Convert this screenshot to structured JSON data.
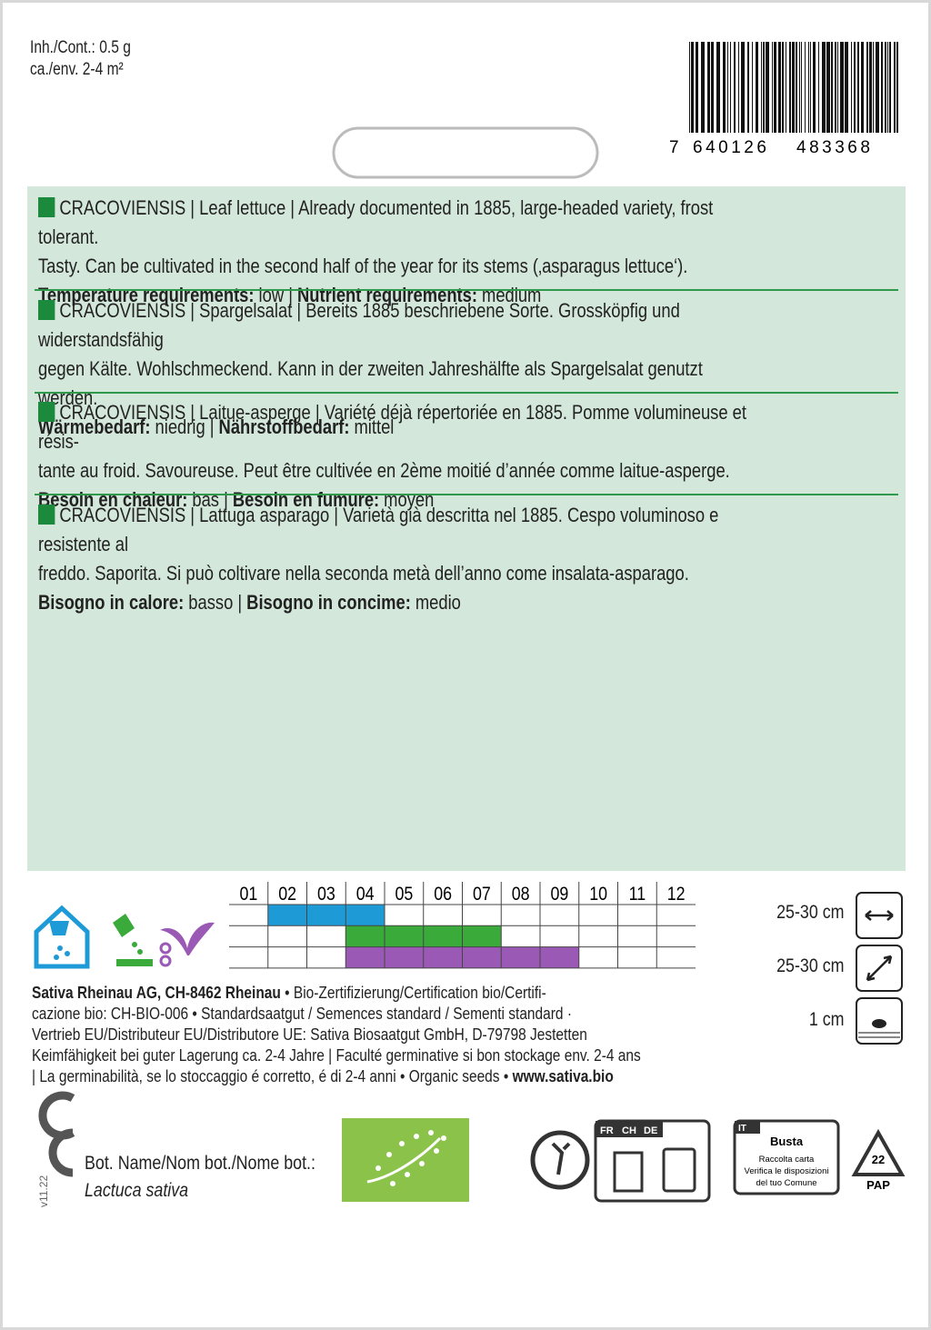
{
  "header": {
    "content": "Inh./Cont.: 0.5 g",
    "area": "ca./env. 2-4 m²",
    "barcode_prefix": "7",
    "barcode_left": "640126",
    "barcode_right": "483368"
  },
  "descriptions": [
    {
      "lines": [
        "CRACOVIENSIS | Leaf lettuce | Already documented in 1885, large-headed variety, frost tolerant.",
        "Tasty. Can be cultivated in the second half of the year for its stems (‚asparagus lettuce‘)."
      ],
      "heat_label": "Temperature requirements:",
      "heat_value": "low |",
      "nutrient_label": "Nutrient requirements:",
      "nutrient_value": "medium"
    },
    {
      "lines": [
        "CRACOVIENSIS | Spargelsalat | Bereits 1885 beschriebene Sorte. Grossköpfig und widerstandsfähig",
        "gegen Kälte. Wohlschmeckend. Kann in der zweiten Jahreshälfte als Spargelsalat genutzt werden."
      ],
      "heat_label": "Wärmebedarf:",
      "heat_value": "niedrig |",
      "nutrient_label": "Nährstoffbedarf:",
      "nutrient_value": "mittel"
    },
    {
      "lines": [
        "CRACOVIENSIS | Laitue-asperge | Variété déjà répertoriée en 1885. Pomme volumineuse et rési­s-",
        "tante au froid. Savoureuse. Peut être cultivée en 2ème moitié d’année comme laitue-asperge."
      ],
      "heat_label": "Besoin en chaleur:",
      "heat_value": "bas |",
      "nutrient_label": "Besoin en fumure:",
      "nutrient_value": "moyen"
    },
    {
      "lines": [
        "CRACOVIENSIS | Lattuga asparago | Varietà già descritta nel 1885. Cespo voluminoso e resistente al",
        "freddo. Saporita. Si può coltivare nella seconda metà dell’anno come insalata-asparago."
      ],
      "heat_label": "Bisogno in calore:",
      "heat_value": "basso |",
      "nutrient_label": "Bisogno in concime:",
      "nutrient_value": "medio"
    }
  ],
  "calendar": {
    "months": [
      "01",
      "02",
      "03",
      "04",
      "05",
      "06",
      "07",
      "08",
      "09",
      "10",
      "11",
      "12"
    ],
    "rows": [
      {
        "name": "sowing",
        "start": 2,
        "end": 4,
        "color": "#1e9bd7"
      },
      {
        "name": "planting",
        "start": 4,
        "end": 7,
        "color": "#3aab3a"
      },
      {
        "name": "harvest",
        "start": 4,
        "end": 9,
        "color": "#9b59b6"
      }
    ]
  },
  "spacing": [
    "25-30 cm",
    "25-30 cm",
    "1 cm"
  ],
  "footer": {
    "company": "Sativa Rheinau AG, CH-8462 Rheinau",
    "line1_rest": " • Bio-Zertifizierung/Certification bio/Certifi-",
    "line2": "cazione bio: CH-BIO-006 • Standardsaatgut / Semences standard / Sementi standard ·",
    "line3": "Vertrieb EU/Distributeur EU/Distributore UE: Sativa Biosaatgut GmbH, D-79798 Jestetten",
    "line4": "Keimfähigkeit bei guter Lagerung ca. 2-4 Jahre | Faculté germinative si bon stockage env. 2-4 ans",
    "line5": "| La germinabilità, se lo stoccaggio é corretto, é di 2-4 anni • Organic seeds • ",
    "website": "www.sativa.bio"
  },
  "version": "v11.22",
  "botanical": {
    "label": "Bot. Name/Nom bot./Nome bot.:",
    "name": "Lactuca sativa"
  },
  "recycling": {
    "countries": [
      "FR",
      "CH",
      "DE"
    ],
    "it": "IT",
    "busta": "Busta",
    "busta_lines": [
      "Raccolta carta",
      "Verifica le disposizioni",
      "del tuo Comune"
    ],
    "code": "22",
    "material": "PAP"
  }
}
